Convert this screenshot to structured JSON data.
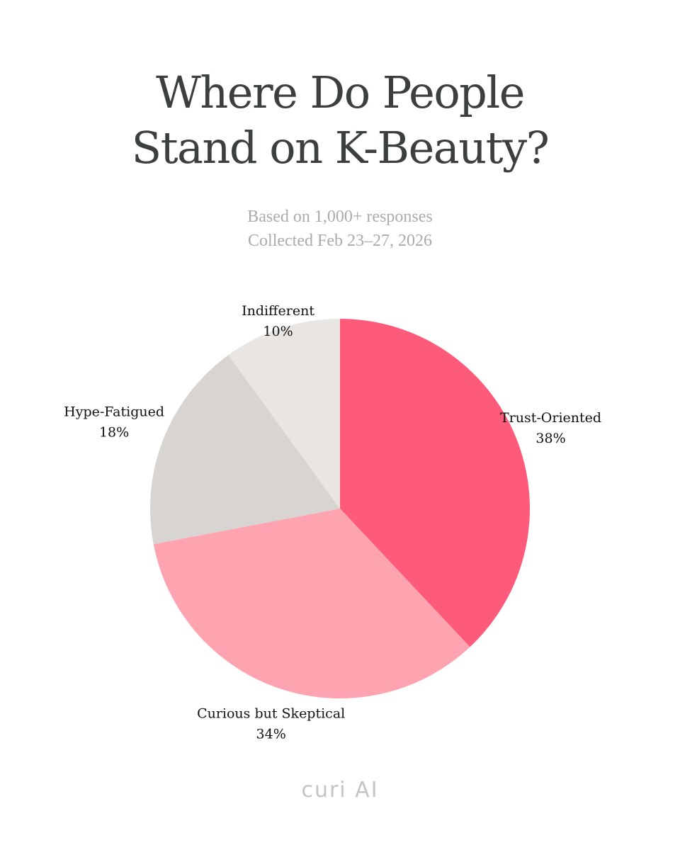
{
  "header": {
    "title_line1": "Where Do People",
    "title_line2": "Stand on K-Beauty?",
    "subtitle_line1": "Based on 1,000+ responses",
    "subtitle_line2": "Collected Feb 23–27, 2026"
  },
  "footer": {
    "brand": "curi AI"
  },
  "chart_data": {
    "type": "pie",
    "title": "Where Do People Stand on K-Beauty?",
    "subtitle": "Based on 1,000+ responses Collected Feb 23–27, 2026",
    "start_angle": "12 o'clock",
    "direction": "clockwise",
    "slices": [
      {
        "label": "Trust-Oriented",
        "value": 38,
        "value_label": "38%",
        "color": "#fe5b7a"
      },
      {
        "label": "Curious but Skeptical",
        "value": 34,
        "value_label": "34%",
        "color": "#fea4b1"
      },
      {
        "label": "Hype-Fatigued",
        "value": 18,
        "value_label": "18%",
        "color": "#d8d4d1"
      },
      {
        "label": "Indifferent",
        "value": 10,
        "value_label": "10%",
        "color": "#e9e5e2"
      }
    ]
  }
}
